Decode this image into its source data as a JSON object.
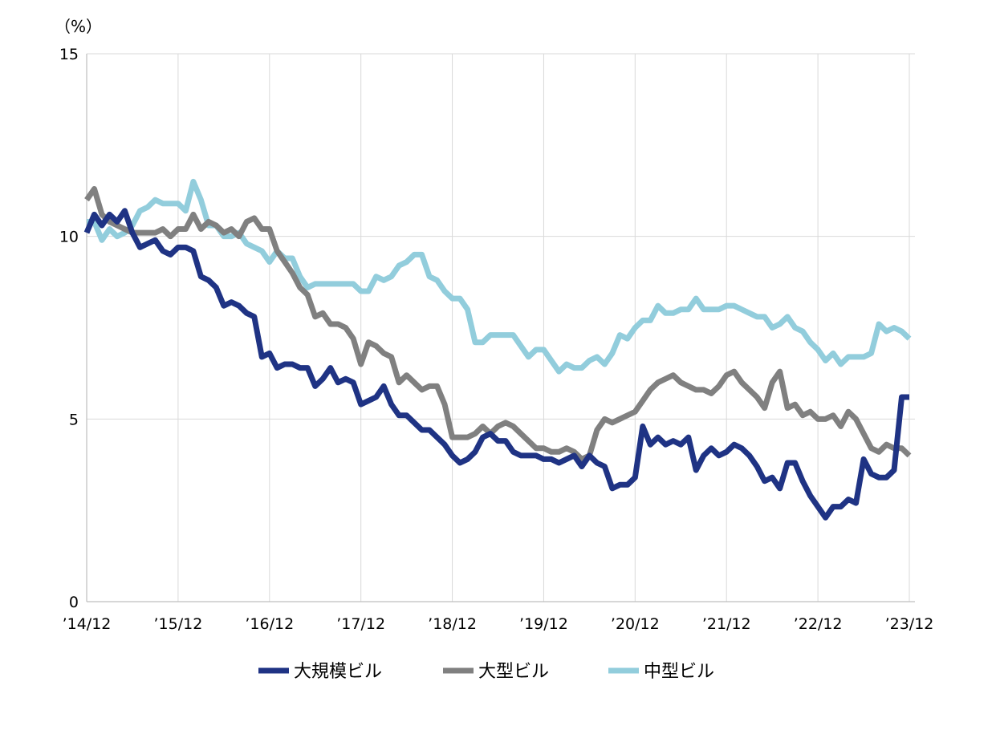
{
  "chart_data": {
    "type": "line",
    "y_unit": "（%）",
    "ylim": [
      0,
      15
    ],
    "y_ticks": [
      "0",
      "5",
      "10",
      "15"
    ],
    "y_tick_values": [
      0,
      5,
      10,
      15
    ],
    "x_range": [
      0,
      109
    ],
    "x_tick_labels": [
      "’14/12",
      "’15/12",
      "’16/12",
      "’17/12",
      "’18/12",
      "’19/12",
      "’20/12",
      "’21/12",
      "’22/12",
      "’23/12"
    ],
    "x_tick_values": [
      0,
      12,
      24,
      36,
      48,
      60,
      72,
      84,
      96,
      108
    ],
    "grid": "vertical and horizontal",
    "legend_position": "bottom",
    "series": [
      {
        "name": "大規模ビル",
        "color": "#1f3384",
        "values": [
          10.1,
          10.6,
          10.3,
          10.6,
          10.4,
          10.7,
          10.1,
          9.7,
          9.8,
          9.9,
          9.6,
          9.5,
          9.7,
          9.7,
          9.6,
          8.9,
          8.8,
          8.6,
          8.1,
          8.2,
          8.1,
          7.9,
          7.8,
          6.7,
          6.8,
          6.4,
          6.5,
          6.5,
          6.4,
          6.4,
          5.9,
          6.1,
          6.4,
          6.0,
          6.1,
          6.0,
          5.4,
          5.5,
          5.6,
          5.9,
          5.4,
          5.1,
          5.1,
          4.9,
          4.7,
          4.7,
          4.5,
          4.3,
          4.0,
          3.8,
          3.9,
          4.1,
          4.5,
          4.6,
          4.4,
          4.4,
          4.1,
          4.0,
          4.0,
          4.0,
          3.9,
          3.9,
          3.8,
          3.9,
          4.0,
          3.7,
          4.0,
          3.8,
          3.7,
          3.1,
          3.2,
          3.2,
          3.4,
          4.8,
          4.3,
          4.5,
          4.3,
          4.4,
          4.3,
          4.5,
          3.6,
          4.0,
          4.2,
          4.0,
          4.1,
          4.3,
          4.2,
          4.0,
          3.7,
          3.3,
          3.4,
          3.1,
          3.8,
          3.8,
          3.3,
          2.9,
          2.6,
          2.3,
          2.6,
          2.6,
          2.8,
          2.7,
          3.9,
          3.5,
          3.4,
          3.4,
          3.6,
          5.6,
          5.6
        ]
      },
      {
        "name": "大型ビル",
        "color": "#808080",
        "values": [
          11.0,
          11.3,
          10.6,
          10.4,
          10.3,
          10.2,
          10.1,
          10.1,
          10.1,
          10.1,
          10.2,
          10.0,
          10.2,
          10.2,
          10.6,
          10.2,
          10.4,
          10.3,
          10.1,
          10.2,
          10.0,
          10.4,
          10.5,
          10.2,
          10.2,
          9.6,
          9.3,
          9.0,
          8.6,
          8.4,
          7.8,
          7.9,
          7.6,
          7.6,
          7.5,
          7.2,
          6.5,
          7.1,
          7.0,
          6.8,
          6.7,
          6.0,
          6.2,
          6.0,
          5.8,
          5.9,
          5.9,
          5.4,
          4.5,
          4.5,
          4.5,
          4.6,
          4.8,
          4.6,
          4.8,
          4.9,
          4.8,
          4.6,
          4.4,
          4.2,
          4.2,
          4.1,
          4.1,
          4.2,
          4.1,
          3.9,
          4.0,
          4.7,
          5.0,
          4.9,
          5.0,
          5.1,
          5.2,
          5.5,
          5.8,
          6.0,
          6.1,
          6.2,
          6.0,
          5.9,
          5.8,
          5.8,
          5.7,
          5.9,
          6.2,
          6.3,
          6.0,
          5.8,
          5.6,
          5.3,
          6.0,
          6.3,
          5.3,
          5.4,
          5.1,
          5.2,
          5.0,
          5.0,
          5.1,
          4.8,
          5.2,
          5.0,
          4.6,
          4.2,
          4.1,
          4.3,
          4.2,
          4.2,
          4.0
        ]
      },
      {
        "name": "中型ビル",
        "color": "#92cddc",
        "values": [
          10.4,
          10.4,
          9.9,
          10.2,
          10.0,
          10.1,
          10.3,
          10.7,
          10.8,
          11.0,
          10.9,
          10.9,
          10.9,
          10.7,
          11.5,
          11.0,
          10.3,
          10.3,
          10.0,
          10.0,
          10.1,
          9.8,
          9.7,
          9.6,
          9.3,
          9.6,
          9.4,
          9.4,
          8.9,
          8.6,
          8.7,
          8.7,
          8.7,
          8.7,
          8.7,
          8.7,
          8.5,
          8.5,
          8.9,
          8.8,
          8.9,
          9.2,
          9.3,
          9.5,
          9.5,
          8.9,
          8.8,
          8.5,
          8.3,
          8.3,
          8.0,
          7.1,
          7.1,
          7.3,
          7.3,
          7.3,
          7.3,
          7.0,
          6.7,
          6.9,
          6.9,
          6.6,
          6.3,
          6.5,
          6.4,
          6.4,
          6.6,
          6.7,
          6.5,
          6.8,
          7.3,
          7.2,
          7.5,
          7.7,
          7.7,
          8.1,
          7.9,
          7.9,
          8.0,
          8.0,
          8.3,
          8.0,
          8.0,
          8.0,
          8.1,
          8.1,
          8.0,
          7.9,
          7.8,
          7.8,
          7.5,
          7.6,
          7.8,
          7.5,
          7.4,
          7.1,
          6.9,
          6.6,
          6.8,
          6.5,
          6.7,
          6.7,
          6.7,
          6.8,
          7.6,
          7.4,
          7.5,
          7.4,
          7.2
        ]
      }
    ]
  }
}
